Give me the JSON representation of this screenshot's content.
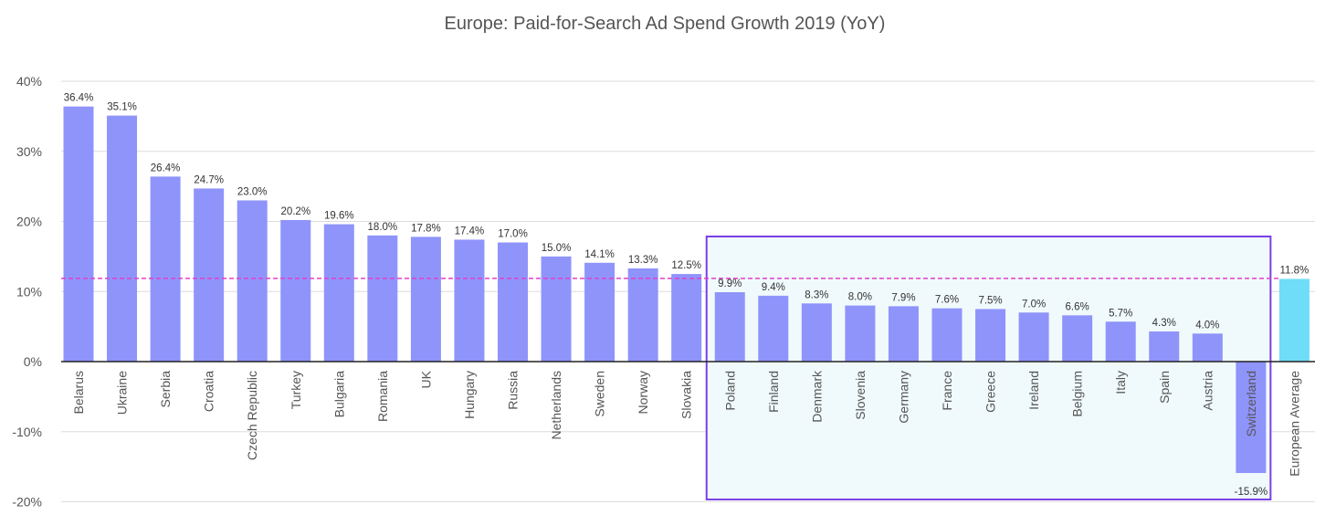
{
  "chart_data": {
    "type": "bar",
    "title": "Europe: Paid-for-Search Ad Spend Growth 2019 (YoY)",
    "xlabel": "",
    "ylabel": "",
    "ylim": [
      -20,
      40
    ],
    "yticks": [
      40,
      30,
      20,
      10,
      0,
      -10,
      -20
    ],
    "ytick_labels": [
      "40%",
      "30%",
      "20%",
      "10%",
      "0%",
      "-10%",
      "-20%"
    ],
    "grid": true,
    "categories": [
      "Belarus",
      "Ukraine",
      "Serbia",
      "Croatia",
      "Czech Republic",
      "Turkey",
      "Bulgaria",
      "Romania",
      "UK",
      "Hungary",
      "Russia",
      "Netherlands",
      "Sweden",
      "Norway",
      "Slovakia",
      "Poland",
      "Finland",
      "Denmark",
      "Slovenia",
      "Germany",
      "France",
      "Greece",
      "Ireland",
      "Belgium",
      "Italy",
      "Spain",
      "Austria",
      "Switzerland",
      "European Average"
    ],
    "values": [
      36.4,
      35.1,
      26.4,
      24.7,
      23.0,
      20.2,
      19.6,
      18.0,
      17.8,
      17.4,
      17.0,
      15.0,
      14.1,
      13.3,
      12.5,
      9.9,
      9.4,
      8.3,
      8.0,
      7.9,
      7.6,
      7.5,
      7.0,
      6.6,
      5.7,
      4.3,
      4.0,
      -15.9,
      11.8
    ],
    "data_labels": [
      "36.4%",
      "35.1%",
      "26.4%",
      "24.7%",
      "23.0%",
      "20.2%",
      "19.6%",
      "18.0%",
      "17.8%",
      "17.4%",
      "17.0%",
      "15.0%",
      "14.1%",
      "13.3%",
      "12.5%",
      "9.9%",
      "9.4%",
      "8.3%",
      "8.0%",
      "7.9%",
      "7.6%",
      "7.5%",
      "7.0%",
      "6.6%",
      "5.7%",
      "4.3%",
      "4.0%",
      "-15.9%",
      "11.8%"
    ],
    "average_line": {
      "value": 11.8,
      "style": "dashed",
      "color": "#e040c8"
    },
    "highlight_range": {
      "from": "Poland",
      "to": "Switzerland"
    },
    "colors": {
      "bar": "#8f94fb",
      "average_bar": "#6fdcf8",
      "highlight_fill": "#f0fafc",
      "highlight_border": "#7b3fe4",
      "grid": "#dddddd",
      "zero_axis": "#222222"
    },
    "legend": "none"
  }
}
